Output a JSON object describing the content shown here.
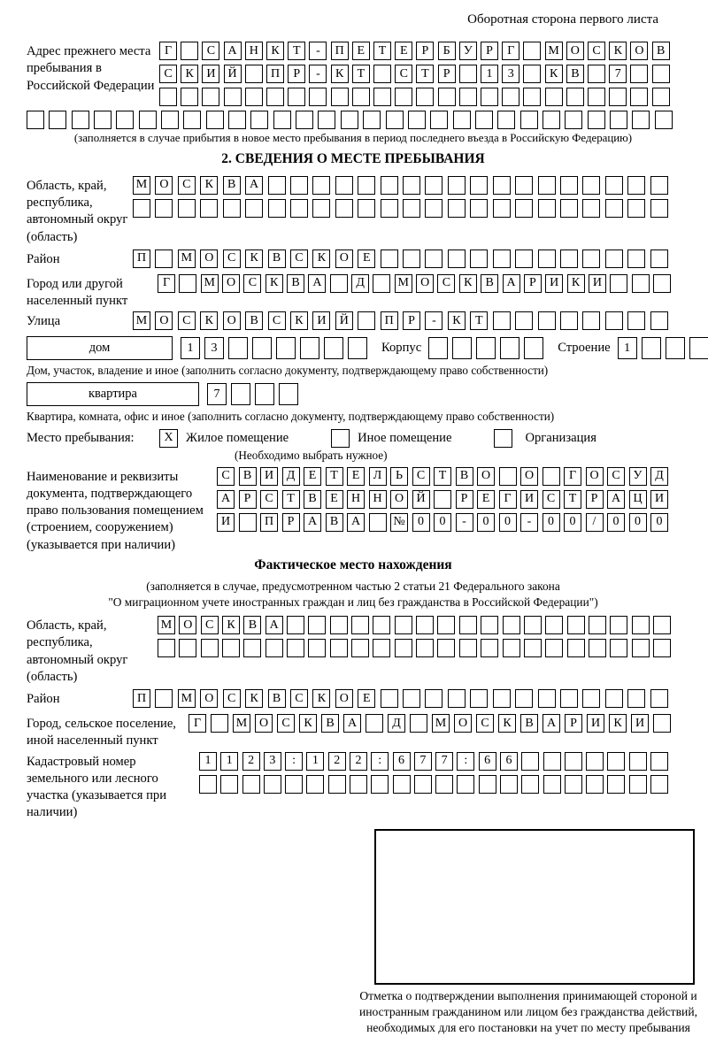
{
  "page": {
    "header_note": "Оборотная сторона первого листа"
  },
  "prev_address": {
    "label": "Адрес прежнего места пребывания в Российской Федерации",
    "rows": [
      {
        "chars": "Г САНКТ-ПЕТЕРБУРГ МОСКОВ",
        "len": 24
      },
      {
        "chars": "СКИЙ ПР-КТ СТР 13 КВ 7",
        "len": 24
      },
      {
        "chars": "",
        "len": 24
      }
    ],
    "full_row": {
      "chars": "",
      "len": 29
    },
    "note": "(заполняется в случае прибытия в новое место пребывания в период последнего въезда в Российскую Федерацию)"
  },
  "section2": {
    "title": "2. СВЕДЕНИЯ О МЕСТЕ ПРЕБЫВАНИЯ",
    "region": {
      "label": "Область, край, республика, автономный округ (область)",
      "rows": [
        {
          "chars": "МОСКВА",
          "len": 24
        },
        {
          "chars": "",
          "len": 24
        }
      ]
    },
    "district": {
      "label": "Район",
      "row": {
        "chars": "П МОСКВСКОЕ",
        "len": 24
      }
    },
    "city": {
      "label": "Город или другой населенный пункт",
      "row": {
        "chars": "Г МОСКВА Д МОСКВАРИКИ",
        "len": 24
      }
    },
    "street": {
      "label": "Улица",
      "row": {
        "chars": "МОСКОВСКИЙ ПР-КТ",
        "len": 24
      }
    },
    "house": {
      "box_label": "дом",
      "cells": {
        "chars": "13",
        "len": 8
      },
      "korpus_label": "Корпус",
      "korpus_cells": {
        "chars": "",
        "len": 5
      },
      "stroenie_label": "Строение",
      "stroenie_cells": {
        "chars": "1",
        "len": 4
      }
    },
    "house_note": "Дом, участок, владение и иное (заполнить согласно документу, подтверждающему право собственности)",
    "apartment": {
      "box_label": "квартира",
      "cells": {
        "chars": "7",
        "len": 4
      }
    },
    "apartment_note": "Квартира, комната, офис и иное (заполнить согласно документу, подтверждающему право собственности)",
    "stay_type": {
      "label": "Место пребывания:",
      "options": [
        {
          "label": "Жилое помещение",
          "checked": "X"
        },
        {
          "label": "Иное помещение",
          "checked": ""
        },
        {
          "label": "Организация",
          "checked": ""
        }
      ],
      "note": "(Необходимо выбрать нужное)"
    },
    "document": {
      "label": "Наименование и реквизиты документа, подтверждающего право пользования помещением (строением, сооружением) (указывается при наличии)",
      "rows": [
        {
          "chars": "СВИДЕТЕЛЬСТВО О ГОСУД",
          "len": 21
        },
        {
          "chars": "АРСТВЕННОЙ РЕГИСТРАЦИ",
          "len": 21
        },
        {
          "chars": "И ПРАВА №00-00-00/000",
          "len": 21
        }
      ]
    }
  },
  "actual_location": {
    "title": "Фактическое место нахождения",
    "note_line1": "(заполняется в случае, предусмотренном частью 2 статьи 21 Федерального закона",
    "note_line2": "\"О миграционном учете иностранных граждан и лиц без гражданства в Российской Федерации\")",
    "region": {
      "label": "Область, край, республика, автономный округ (область)",
      "rows": [
        {
          "chars": "МОСКВА",
          "len": 24
        },
        {
          "chars": "",
          "len": 24
        }
      ]
    },
    "district": {
      "label": "Район",
      "row": {
        "chars": "П МОСКВСКОЕ",
        "len": 24
      }
    },
    "city": {
      "label": "Город, сельское поселение, иной населенный пункт",
      "row": {
        "chars": "Г МОСКВА Д МОСКВАРИКИ",
        "len": 22
      }
    },
    "cadastral": {
      "label": "Кадастровый номер земельного или лесного участка (указывается при наличии)",
      "rows": [
        {
          "chars": "1123:122:677:66",
          "len": 22
        },
        {
          "chars": "",
          "len": 22
        }
      ]
    },
    "stamp_note": "Отметка о подтверждении выполнения принимающей стороной и иностранным гражданином или лицом без гражданства действий, необходимых для его постановки на учет по месту пребывания"
  }
}
